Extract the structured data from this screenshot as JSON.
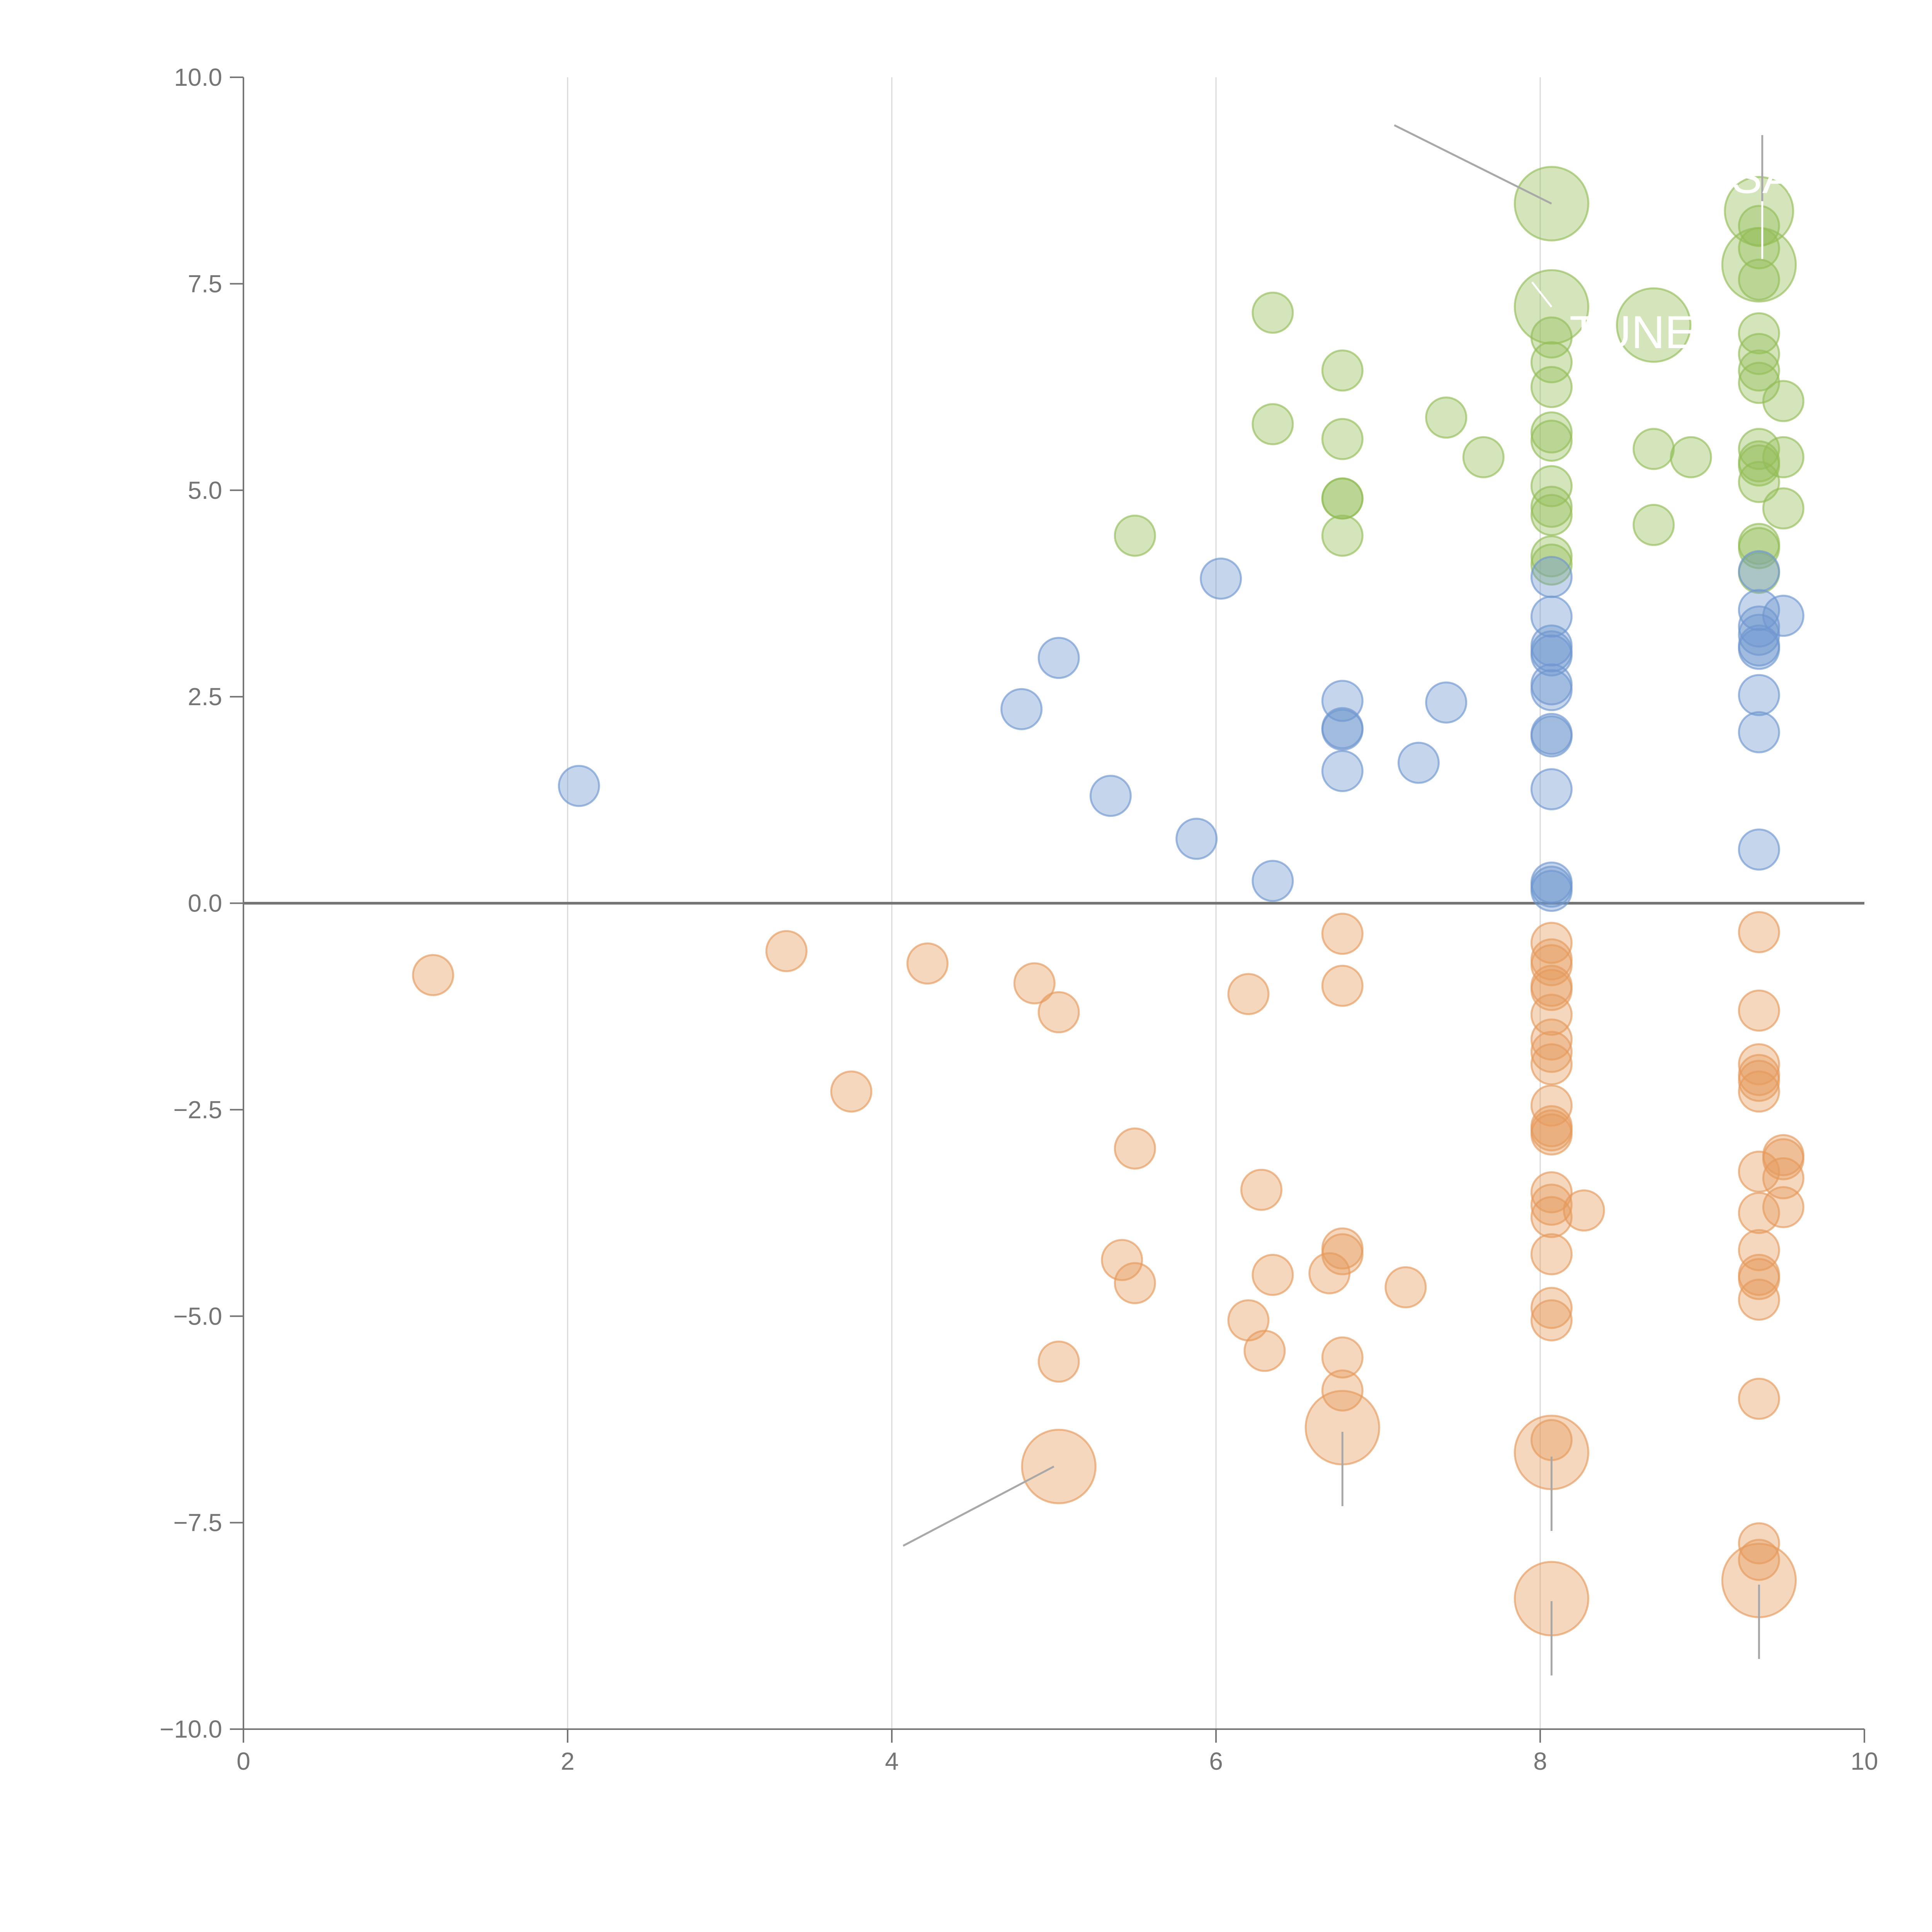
{
  "chart_data": {
    "type": "scatter",
    "title": "",
    "xlabel": "",
    "ylabel": "",
    "xlim": [
      0,
      10
    ],
    "ylim": [
      -10,
      10
    ],
    "x_ticks": [
      0,
      2,
      4,
      6,
      8,
      10
    ],
    "x_tick_labels": [
      "0",
      "2",
      "4",
      "6",
      "8",
      "10"
    ],
    "y_ticks": [
      10,
      7.5,
      5,
      2.5,
      0,
      -2.5,
      -5,
      -7.5,
      -10
    ],
    "y_tick_labels": [
      "10.0",
      "7.5",
      "5.0",
      "2.5",
      "0.0",
      "−2.5",
      "−5.0",
      "−7.5",
      "−10.0"
    ],
    "grid": "vertical",
    "overlay_labels": [
      "SA",
      "TUNE"
    ],
    "series": [
      {
        "name": "green",
        "color": "#93bd58",
        "points": [
          [
            5.5,
            4.45
          ],
          [
            6.35,
            7.15
          ],
          [
            6.35,
            5.8
          ],
          [
            6.78,
            6.45
          ],
          [
            6.78,
            5.62
          ],
          [
            6.78,
            4.9
          ],
          [
            6.78,
            4.9
          ],
          [
            6.78,
            4.45
          ],
          [
            7.42,
            5.88
          ],
          [
            7.65,
            5.4
          ],
          [
            8.07,
            8.47
          ],
          [
            8.07,
            7.22
          ],
          [
            8.07,
            6.85
          ],
          [
            8.07,
            6.55
          ],
          [
            8.07,
            6.25
          ],
          [
            8.07,
            5.7
          ],
          [
            8.07,
            5.6
          ],
          [
            8.07,
            5.05
          ],
          [
            8.07,
            4.8
          ],
          [
            8.07,
            4.7
          ],
          [
            8.07,
            4.2
          ],
          [
            8.07,
            4.1
          ],
          [
            8.7,
            7.0
          ],
          [
            8.7,
            5.5
          ],
          [
            8.7,
            4.58
          ],
          [
            8.93,
            5.4
          ],
          [
            9.35,
            8.38
          ],
          [
            9.35,
            8.2
          ],
          [
            9.35,
            7.93
          ],
          [
            9.35,
            7.73
          ],
          [
            9.35,
            7.55
          ],
          [
            9.35,
            6.9
          ],
          [
            9.35,
            6.65
          ],
          [
            9.35,
            6.45
          ],
          [
            9.35,
            6.3
          ],
          [
            9.35,
            5.5
          ],
          [
            9.35,
            5.35
          ],
          [
            9.35,
            5.3
          ],
          [
            9.35,
            5.1
          ],
          [
            9.35,
            4.35
          ],
          [
            9.35,
            4.3
          ],
          [
            9.35,
            4.0
          ],
          [
            9.5,
            6.08
          ],
          [
            9.5,
            5.4
          ],
          [
            9.5,
            4.78
          ]
        ],
        "sizes": [
          1,
          1,
          1,
          1,
          1,
          1,
          1,
          1,
          1,
          1,
          3,
          3,
          1,
          1,
          1,
          1,
          1,
          1,
          1,
          1,
          1,
          1,
          3,
          1,
          1,
          1,
          2.5,
          1,
          1,
          3,
          1,
          1,
          1,
          1,
          1,
          1,
          1,
          1,
          1,
          1,
          1,
          1,
          1,
          1,
          1
        ]
      },
      {
        "name": "blue",
        "color": "#6f96cf",
        "points": [
          [
            2.07,
            1.42
          ],
          [
            4.8,
            2.35
          ],
          [
            5.03,
            2.97
          ],
          [
            5.35,
            1.3
          ],
          [
            5.88,
            0.78
          ],
          [
            6.03,
            3.93
          ],
          [
            6.35,
            0.27
          ],
          [
            6.78,
            2.45
          ],
          [
            6.78,
            2.12
          ],
          [
            6.78,
            2.1
          ],
          [
            6.78,
            1.6
          ],
          [
            7.25,
            1.7
          ],
          [
            7.42,
            2.43
          ],
          [
            8.07,
            3.95
          ],
          [
            8.07,
            3.47
          ],
          [
            8.07,
            3.12
          ],
          [
            8.07,
            3.05
          ],
          [
            8.07,
            3.0
          ],
          [
            8.07,
            2.65
          ],
          [
            8.07,
            2.58
          ],
          [
            8.07,
            2.05
          ],
          [
            8.07,
            2.02
          ],
          [
            8.07,
            1.38
          ],
          [
            8.07,
            0.25
          ],
          [
            8.07,
            0.2
          ],
          [
            8.07,
            0.15
          ],
          [
            9.35,
            4.02
          ],
          [
            9.35,
            3.55
          ],
          [
            9.35,
            3.35
          ],
          [
            9.35,
            3.25
          ],
          [
            9.35,
            3.12
          ],
          [
            9.35,
            3.08
          ],
          [
            9.35,
            2.52
          ],
          [
            9.35,
            2.07
          ],
          [
            9.35,
            0.65
          ],
          [
            9.5,
            3.48
          ]
        ],
        "sizes": [
          1,
          1,
          1,
          1,
          1,
          1,
          1,
          1,
          1,
          1,
          1,
          1,
          1,
          1,
          1,
          1,
          1,
          1,
          1,
          1,
          1,
          1,
          1,
          1,
          1,
          1,
          1,
          1,
          1,
          1,
          1,
          1,
          1,
          1,
          1,
          1
        ]
      },
      {
        "name": "orange",
        "color": "#e59a5c",
        "points": [
          [
            1.17,
            -0.87
          ],
          [
            3.35,
            -0.58
          ],
          [
            3.75,
            -2.28
          ],
          [
            4.22,
            -0.73
          ],
          [
            4.88,
            -0.97
          ],
          [
            5.03,
            -1.32
          ],
          [
            5.03,
            -5.55
          ],
          [
            5.03,
            -6.82
          ],
          [
            5.42,
            -4.32
          ],
          [
            5.5,
            -2.97
          ],
          [
            5.5,
            -4.6
          ],
          [
            6.2,
            -1.1
          ],
          [
            6.2,
            -5.05
          ],
          [
            6.28,
            -3.47
          ],
          [
            6.3,
            -5.42
          ],
          [
            6.35,
            -4.5
          ],
          [
            6.7,
            -4.48
          ],
          [
            6.78,
            -0.37
          ],
          [
            6.78,
            -1.0
          ],
          [
            6.78,
            -4.18
          ],
          [
            6.78,
            -4.25
          ],
          [
            6.78,
            -5.5
          ],
          [
            6.78,
            -5.9
          ],
          [
            6.78,
            -6.35
          ],
          [
            7.17,
            -4.65
          ],
          [
            8.07,
            -0.48
          ],
          [
            8.07,
            -0.68
          ],
          [
            8.07,
            -0.75
          ],
          [
            8.07,
            -1.0
          ],
          [
            8.07,
            -1.05
          ],
          [
            8.07,
            -1.35
          ],
          [
            8.07,
            -1.65
          ],
          [
            8.07,
            -1.8
          ],
          [
            8.07,
            -1.95
          ],
          [
            8.07,
            -2.45
          ],
          [
            8.07,
            -2.7
          ],
          [
            8.07,
            -2.75
          ],
          [
            8.07,
            -2.8
          ],
          [
            8.07,
            -3.5
          ],
          [
            8.07,
            -3.65
          ],
          [
            8.07,
            -3.8
          ],
          [
            8.07,
            -4.25
          ],
          [
            8.07,
            -4.9
          ],
          [
            8.07,
            -5.05
          ],
          [
            8.07,
            -6.5
          ],
          [
            8.07,
            -6.65
          ],
          [
            8.07,
            -8.42
          ],
          [
            8.27,
            -3.72
          ],
          [
            9.35,
            -0.35
          ],
          [
            9.35,
            -1.3
          ],
          [
            9.35,
            -1.95
          ],
          [
            9.35,
            -2.08
          ],
          [
            9.35,
            -2.15
          ],
          [
            9.35,
            -2.28
          ],
          [
            9.35,
            -3.25
          ],
          [
            9.35,
            -3.75
          ],
          [
            9.35,
            -4.2
          ],
          [
            9.35,
            -4.5
          ],
          [
            9.35,
            -4.55
          ],
          [
            9.35,
            -4.8
          ],
          [
            9.35,
            -6.0
          ],
          [
            9.35,
            -7.75
          ],
          [
            9.35,
            -7.95
          ],
          [
            9.35,
            -8.2
          ],
          [
            9.5,
            -3.05
          ],
          [
            9.5,
            -3.1
          ],
          [
            9.5,
            -3.33
          ],
          [
            9.5,
            -3.68
          ]
        ],
        "sizes": [
          1,
          1,
          1,
          1,
          1,
          1,
          1,
          3,
          1,
          1,
          1,
          1,
          1,
          1,
          1,
          1,
          1,
          1,
          1,
          1,
          1,
          1,
          1,
          3,
          1,
          1,
          1,
          1,
          1,
          1,
          1,
          1,
          1,
          1,
          1,
          1,
          1,
          1,
          1,
          1,
          1,
          1,
          1,
          1,
          1,
          3,
          3,
          1,
          1,
          1,
          1,
          1,
          1,
          1,
          1,
          1,
          1,
          1,
          1,
          1,
          1,
          1,
          1,
          3,
          1,
          1,
          1,
          1
        ]
      }
    ],
    "leader_lines": [
      {
        "from": [
          7.1,
          9.42
        ],
        "to": [
          8.07,
          8.47
        ],
        "color": "#a8a8a8"
      },
      {
        "from": [
          9.37,
          9.3
        ],
        "to": [
          9.37,
          8.5
        ],
        "color": "#a8a8a8"
      },
      {
        "from": [
          9.37,
          8.5
        ],
        "to": [
          9.37,
          7.8
        ],
        "color": "#ffffff"
      },
      {
        "from": [
          7.95,
          7.52
        ],
        "to": [
          8.07,
          7.22
        ],
        "color": "#ffffff"
      },
      {
        "from": [
          4.07,
          -7.78
        ],
        "to": [
          5.0,
          -6.82
        ],
        "color": "#a8a8a8"
      },
      {
        "from": [
          6.78,
          -6.4
        ],
        "to": [
          6.78,
          -7.3
        ],
        "color": "#a8a8a8"
      },
      {
        "from": [
          8.07,
          -6.7
        ],
        "to": [
          8.07,
          -7.6
        ],
        "color": "#a8a8a8"
      },
      {
        "from": [
          8.07,
          -8.45
        ],
        "to": [
          8.07,
          -9.35
        ],
        "color": "#a8a8a8"
      },
      {
        "from": [
          9.35,
          -8.25
        ],
        "to": [
          9.35,
          -9.15
        ],
        "color": "#a8a8a8"
      }
    ],
    "overlay_label_positions": [
      [
        9.37,
        8.6
      ],
      [
        8.57,
        6.72
      ]
    ]
  }
}
